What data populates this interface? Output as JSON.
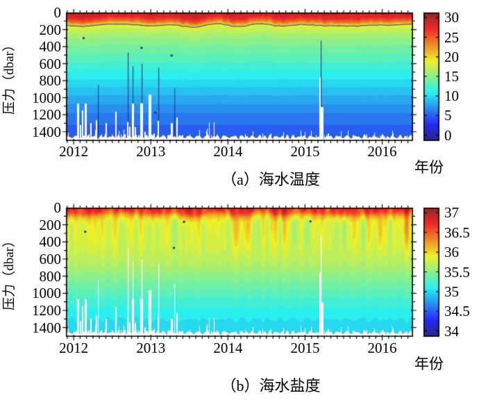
{
  "figure": {
    "panels": [
      {
        "caption": "（a）海水温度",
        "xlabel": "年份",
        "ylabel": "压力（dbar）"
      },
      {
        "caption": "（b）海水盐度",
        "xlabel": "年份",
        "ylabel": "压力（dbar）"
      }
    ]
  },
  "chart_data": [
    {
      "type": "heatmap",
      "title": "（a）海水温度",
      "xlabel": "年份",
      "ylabel": "压力（dbar）",
      "x_range": [
        2011.9,
        2016.4
      ],
      "x_ticks": [
        2012,
        2013,
        2014,
        2015,
        2016
      ],
      "x_minor_tick_interval_years": 0.0833,
      "y_range": [
        0,
        1500
      ],
      "y_ticks": [
        0,
        200,
        400,
        600,
        800,
        1000,
        1200,
        1400
      ],
      "y_minor_tick_interval": 100,
      "colormap": "jet",
      "colorbar": {
        "min": 0,
        "max": 30,
        "ticks": [
          0,
          5,
          10,
          15,
          20,
          25,
          30
        ],
        "position": "right"
      },
      "quantize_step": 1.0,
      "profile": {
        "pressure_dbar": [
          0,
          50,
          100,
          150,
          200,
          300,
          400,
          500,
          600,
          700,
          800,
          900,
          1000,
          1100,
          1200,
          1300,
          1400,
          1500
        ],
        "value": [
          29,
          28,
          24.5,
          19,
          17.2,
          15.5,
          14.3,
          13.3,
          12.3,
          11.3,
          10.3,
          9.2,
          8.2,
          7.2,
          6.3,
          5.6,
          5.0,
          4.6
        ]
      },
      "contour_line": {
        "value": 19,
        "approx_pressure_dbar": 150,
        "color": "#45598a"
      },
      "missing_data_spikes": [
        [
          2012.055,
          1070,
          3
        ],
        [
          2012.085,
          1320,
          2
        ],
        [
          2012.115,
          1150,
          2
        ],
        [
          2012.15,
          1070,
          3
        ],
        [
          2012.19,
          1440,
          2
        ],
        [
          2012.225,
          1300,
          2
        ],
        [
          2012.3,
          1265,
          2
        ],
        [
          2012.36,
          1430,
          1
        ],
        [
          2012.425,
          1300,
          2
        ],
        [
          2012.49,
          1430,
          1
        ],
        [
          2012.55,
          1165,
          2
        ],
        [
          2012.615,
          1430,
          1
        ],
        [
          2012.665,
          1430,
          2
        ],
        [
          2012.7,
          1285,
          2
        ],
        [
          2012.73,
          1340,
          2
        ],
        [
          2012.765,
          1070,
          3
        ],
        [
          2012.8,
          1345,
          2
        ],
        [
          2012.845,
          1440,
          2
        ],
        [
          2012.88,
          1065,
          4
        ],
        [
          2012.93,
          1400,
          2
        ],
        [
          2012.985,
          965,
          4
        ],
        [
          2013.04,
          1420,
          2
        ],
        [
          2013.1,
          1270,
          2
        ],
        [
          2013.16,
          1440,
          2
        ],
        [
          2013.225,
          1435,
          1
        ],
        [
          2013.27,
          1300,
          3
        ],
        [
          2013.34,
          1235,
          2
        ],
        [
          2013.41,
          1440,
          2
        ],
        [
          2013.5,
          1430,
          1
        ],
        [
          2013.62,
          1445,
          1
        ],
        [
          2013.78,
          1440,
          1
        ],
        [
          2013.96,
          1445,
          1
        ],
        [
          2014.15,
          1450,
          1
        ],
        [
          2014.42,
          1445,
          1
        ],
        [
          2014.7,
          1450,
          1
        ],
        [
          2014.95,
          1445,
          1
        ],
        [
          2015.19,
          760,
          2
        ],
        [
          2015.215,
          1110,
          5
        ],
        [
          2015.3,
          1420,
          2
        ],
        [
          2015.46,
          1435,
          1
        ],
        [
          2015.63,
          1440,
          2
        ],
        [
          2015.8,
          1430,
          1
        ],
        [
          2015.97,
          1445,
          1
        ],
        [
          2016.14,
          1420,
          2
        ],
        [
          2016.32,
          1445,
          1
        ],
        [
          2016.47,
          1430,
          2
        ],
        [
          2016.6,
          1440,
          2
        ]
      ],
      "anomaly_streaks": [
        [
          2012.315,
          850
        ],
        [
          2012.7,
          470
        ],
        [
          2012.765,
          630
        ],
        [
          2012.88,
          600
        ],
        [
          2013.1,
          650
        ],
        [
          2013.3,
          890
        ],
        [
          2015.205,
          330
        ]
      ],
      "dark_spots": [
        [
          2012.13,
          300
        ],
        [
          2012.88,
          415
        ],
        [
          2013.27,
          505
        ],
        [
          2013.06,
          1175
        ]
      ],
      "gap_seed": 11,
      "texture_seed": 3
    },
    {
      "type": "heatmap",
      "title": "（b）海水盐度",
      "xlabel": "年份",
      "ylabel": "压力（dbar）",
      "x_range": [
        2011.9,
        2016.4
      ],
      "x_ticks": [
        2012,
        2013,
        2014,
        2015,
        2016
      ],
      "x_minor_tick_interval_years": 0.0833,
      "y_range": [
        0,
        1500
      ],
      "y_ticks": [
        0,
        200,
        400,
        600,
        800,
        1000,
        1200,
        1400
      ],
      "y_minor_tick_interval": 100,
      "colormap": "jet",
      "colorbar": {
        "min": 34,
        "max": 37,
        "ticks": [
          34,
          34.5,
          35,
          35.5,
          36,
          36.5,
          37
        ],
        "position": "right"
      },
      "quantize_step": 0.1,
      "profile": {
        "pressure_dbar": [
          0,
          50,
          100,
          150,
          200,
          300,
          400,
          500,
          600,
          700,
          800,
          900,
          1000,
          1100,
          1200,
          1300,
          1400,
          1500
        ],
        "value": [
          36.75,
          36.6,
          36.15,
          35.9,
          35.85,
          35.82,
          35.8,
          35.76,
          35.7,
          35.62,
          35.5,
          35.4,
          35.3,
          35.2,
          35.12,
          35.05,
          35.0,
          34.98
        ]
      },
      "contour_line": null,
      "missing_data_spikes": [
        [
          2012.055,
          1070,
          3
        ],
        [
          2012.085,
          1320,
          2
        ],
        [
          2012.115,
          1150,
          2
        ],
        [
          2012.15,
          1070,
          3
        ],
        [
          2012.19,
          1440,
          2
        ],
        [
          2012.225,
          1300,
          2
        ],
        [
          2012.3,
          1265,
          2
        ],
        [
          2012.36,
          1430,
          1
        ],
        [
          2012.425,
          1300,
          2
        ],
        [
          2012.49,
          1430,
          1
        ],
        [
          2012.55,
          1165,
          2
        ],
        [
          2012.615,
          1430,
          1
        ],
        [
          2012.665,
          1430,
          2
        ],
        [
          2012.7,
          1285,
          2
        ],
        [
          2012.73,
          1340,
          2
        ],
        [
          2012.765,
          1070,
          3
        ],
        [
          2012.8,
          1345,
          2
        ],
        [
          2012.845,
          1440,
          2
        ],
        [
          2012.88,
          1065,
          4
        ],
        [
          2012.93,
          1400,
          2
        ],
        [
          2012.985,
          965,
          4
        ],
        [
          2013.04,
          1420,
          2
        ],
        [
          2013.1,
          1270,
          2
        ],
        [
          2013.16,
          1440,
          2
        ],
        [
          2013.225,
          1435,
          1
        ],
        [
          2013.27,
          1300,
          3
        ],
        [
          2013.34,
          1235,
          2
        ],
        [
          2013.41,
          1440,
          2
        ],
        [
          2013.5,
          1430,
          1
        ],
        [
          2013.62,
          1445,
          1
        ],
        [
          2013.78,
          1440,
          1
        ],
        [
          2013.96,
          1445,
          1
        ],
        [
          2014.15,
          1450,
          1
        ],
        [
          2014.42,
          1445,
          1
        ],
        [
          2014.7,
          1450,
          1
        ],
        [
          2014.95,
          1445,
          1
        ],
        [
          2015.19,
          760,
          2
        ],
        [
          2015.215,
          1110,
          5
        ],
        [
          2015.3,
          1420,
          2
        ],
        [
          2015.46,
          1435,
          1
        ],
        [
          2015.63,
          1440,
          2
        ],
        [
          2015.8,
          1430,
          1
        ],
        [
          2015.97,
          1445,
          1
        ],
        [
          2016.14,
          1420,
          2
        ],
        [
          2016.32,
          1445,
          1
        ],
        [
          2016.47,
          1430,
          2
        ],
        [
          2016.6,
          1440,
          2
        ]
      ],
      "anomaly_streaks": [
        [
          2012.315,
          850
        ],
        [
          2012.7,
          470
        ],
        [
          2012.765,
          630
        ],
        [
          2012.88,
          600
        ],
        [
          2013.1,
          650
        ],
        [
          2013.3,
          890
        ],
        [
          2015.205,
          330
        ]
      ],
      "dark_spots": [
        [
          2012.15,
          280
        ],
        [
          2013.3,
          470
        ],
        [
          2013.43,
          165
        ],
        [
          2015.07,
          160
        ]
      ],
      "gap_seed": 11,
      "texture_seed": 7
    }
  ]
}
